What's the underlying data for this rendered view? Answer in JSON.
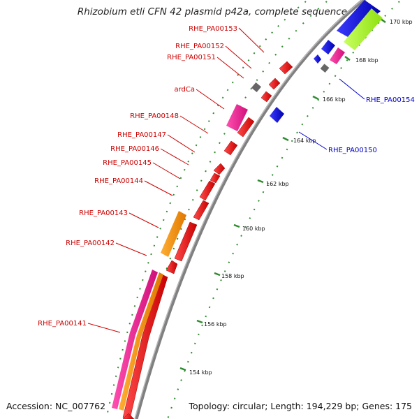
{
  "title": "Rhizobium etli CFN 42 plasmid p42a, complete sequence",
  "footer": {
    "accession": "Accession: NC_007762",
    "summary": "Topology: circular; Length: 194,229 bp; Genes: 175"
  },
  "colors": {
    "backbone": "#808080",
    "tick": "#2e8b2e",
    "forward_gene": "#ff0000",
    "reverse_gene": "#0000ff",
    "pink_feature": "#ff1493",
    "orange_feature": "#ff8c00",
    "green_feature": "#adff2f",
    "gray_feature": "#666666",
    "label_forward": "#cc0000",
    "label_reverse": "#0000cc"
  },
  "scale_labels": [
    "154 kbp",
    "156 kbp",
    "158 kbp",
    "160 kbp",
    "162 kbp",
    "164 kbp",
    "166 kbp",
    "168 kbp",
    "170 kbp"
  ],
  "gene_labels_left": [
    "RHE_PA00153",
    "RHE_PA00152",
    "RHE_PA00151",
    "ardCa",
    "RHE_PA00148",
    "RHE_PA00147",
    "RHE_PA00146",
    "RHE_PA00145",
    "RHE_PA00144",
    "RHE_PA00143",
    "RHE_PA00142",
    "RHE_PA00141"
  ],
  "gene_labels_right": [
    "RHE_PA00154",
    "RHE_PA00150"
  ]
}
